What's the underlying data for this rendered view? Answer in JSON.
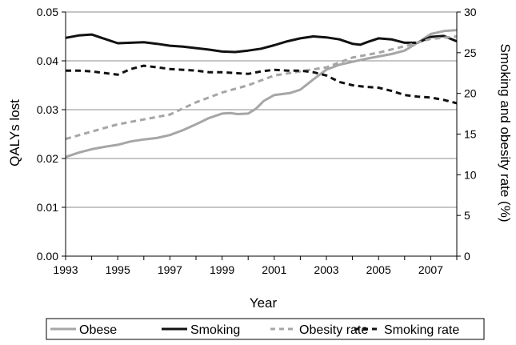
{
  "chart_data": {
    "type": "line",
    "xlabel": "Year",
    "ylabel_left": "QALYs lost",
    "ylabel_right": "Smoking and obesity rate (%)",
    "xlim": [
      1993,
      2008
    ],
    "ylim_left": [
      0,
      0.05
    ],
    "ylim_right": [
      0,
      30
    ],
    "x_ticks": [
      1993,
      1995,
      1997,
      1999,
      2001,
      2003,
      2005,
      2007
    ],
    "x_tick_labels": [
      "1993",
      "1995",
      "1997",
      "1999",
      "2001",
      "2003",
      "2005",
      "2007"
    ],
    "y_left_ticks": [
      0,
      0.01,
      0.02,
      0.03,
      0.04,
      0.05
    ],
    "y_left_tick_labels": [
      "0.00",
      "0.01",
      "0.02",
      "0.03",
      "0.04",
      "0.05"
    ],
    "y_right_ticks": [
      0,
      5,
      10,
      15,
      20,
      25,
      30
    ],
    "y_right_tick_labels": [
      "0",
      "5",
      "10",
      "15",
      "20",
      "25",
      "30"
    ],
    "grid": "horizontal",
    "legend_position": "bottom",
    "series": [
      {
        "name": "Obese",
        "axis": "left",
        "color": "#a6a6a6",
        "dash": "solid",
        "x": [
          1993,
          1993.5,
          1994,
          1994.5,
          1995,
          1995.5,
          1996,
          1996.5,
          1997,
          1997.5,
          1998,
          1998.5,
          1999,
          1999.3,
          1999.6,
          2000,
          2000.3,
          2000.6,
          2001,
          2001.3,
          2001.6,
          2002,
          2002.5,
          2003,
          2003.5,
          2004,
          2004.5,
          2005,
          2005.5,
          2006,
          2006.5,
          2007,
          2007.5,
          2008
        ],
        "y": [
          0.0203,
          0.0212,
          0.0219,
          0.0224,
          0.0228,
          0.0235,
          0.0239,
          0.0242,
          0.0248,
          0.0258,
          0.027,
          0.0283,
          0.0292,
          0.0293,
          0.0291,
          0.0292,
          0.0302,
          0.0318,
          0.033,
          0.0332,
          0.0334,
          0.0341,
          0.0362,
          0.0382,
          0.0392,
          0.0398,
          0.0404,
          0.0409,
          0.0414,
          0.0421,
          0.0437,
          0.0455,
          0.0461,
          0.0463
        ]
      },
      {
        "name": "Smoking",
        "axis": "left",
        "color": "#111111",
        "dash": "solid",
        "x": [
          1993,
          1993.5,
          1994,
          1994.5,
          1995,
          1995.5,
          1996,
          1996.5,
          1997,
          1997.5,
          1998,
          1998.5,
          1999,
          1999.5,
          2000,
          2000.5,
          2001,
          2001.5,
          2002,
          2002.5,
          2003,
          2003.5,
          2004,
          2004.3,
          2004.6,
          2005,
          2005.5,
          2006,
          2006.5,
          2007,
          2007.5,
          2008
        ],
        "y": [
          0.0447,
          0.0452,
          0.0454,
          0.0445,
          0.0436,
          0.0437,
          0.0438,
          0.0435,
          0.0431,
          0.0429,
          0.0426,
          0.0423,
          0.0419,
          0.0418,
          0.0421,
          0.0425,
          0.0432,
          0.044,
          0.0446,
          0.045,
          0.0448,
          0.0444,
          0.0435,
          0.0433,
          0.0439,
          0.0446,
          0.0444,
          0.0437,
          0.0437,
          0.0449,
          0.0451,
          0.044
        ]
      },
      {
        "name": "Obesity rate",
        "axis": "right",
        "color": "#a6a6a6",
        "dash": "dash",
        "x": [
          1993,
          1994,
          1995,
          1996,
          1997,
          1998,
          1999,
          2000,
          2001,
          2002,
          2003,
          2004,
          2005,
          2006,
          2007,
          2008
        ],
        "y": [
          14.4,
          15.3,
          16.2,
          16.8,
          17.4,
          18.9,
          20.1,
          21.0,
          22.2,
          22.7,
          23.2,
          24.4,
          25.0,
          25.8,
          26.7,
          27.0
        ]
      },
      {
        "name": "Smoking rate",
        "axis": "right",
        "color": "#111111",
        "dash": "dash",
        "x": [
          1993,
          1993.5,
          1994,
          1994.5,
          1995,
          1995.5,
          1996,
          1996.5,
          1997,
          1997.5,
          1998,
          1998.5,
          1999,
          1999.5,
          2000,
          2000.5,
          2001,
          2001.5,
          2002,
          2002.5,
          2003,
          2003.5,
          2004,
          2004.5,
          2005,
          2005.5,
          2006,
          2006.5,
          2007,
          2007.5,
          2008
        ],
        "y": [
          22.8,
          22.8,
          22.7,
          22.5,
          22.3,
          23.0,
          23.4,
          23.2,
          23.0,
          22.9,
          22.8,
          22.6,
          22.6,
          22.5,
          22.4,
          22.7,
          22.9,
          22.8,
          22.8,
          22.6,
          22.2,
          21.4,
          21.0,
          20.8,
          20.7,
          20.3,
          19.8,
          19.6,
          19.5,
          19.2,
          18.8
        ]
      }
    ]
  }
}
